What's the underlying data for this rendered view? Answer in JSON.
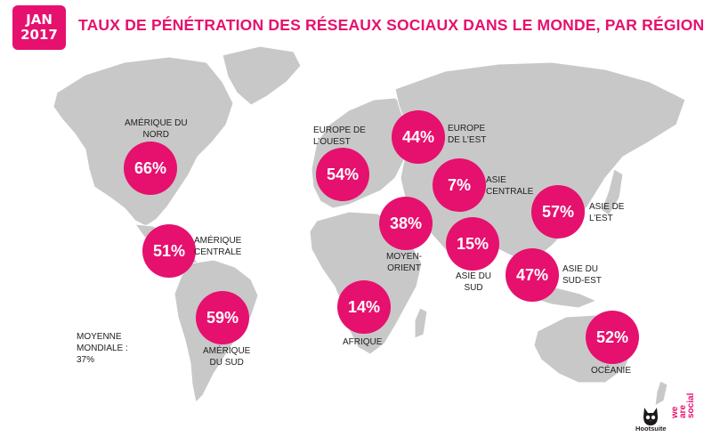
{
  "badge": {
    "month": "JAN",
    "year": "2017"
  },
  "title": "TAUX DE PÉNÉTRATION DES RÉSEAUX SOCIAUX DANS LE MONDE, PAR RÉGION",
  "accent_color": "#e6106e",
  "land_color": "#c8c8c8",
  "regions": [
    {
      "value": "66%",
      "label": [
        "AMÉRIQUE DU",
        "NORD"
      ]
    },
    {
      "value": "51%",
      "label": [
        "AMÉRIQUE",
        "CENTRALE"
      ]
    },
    {
      "value": "59%",
      "label": [
        "AMÉRIQUE",
        "DU SUD"
      ]
    },
    {
      "value": "54%",
      "label": [
        "EUROPE DE",
        "L’OUEST"
      ]
    },
    {
      "value": "44%",
      "label": [
        "EUROPE",
        "DE L’EST"
      ]
    },
    {
      "value": "7%",
      "label": [
        "ASIE",
        "CENTRALE"
      ]
    },
    {
      "value": "57%",
      "label": [
        "ASIE DE",
        "L’EST"
      ]
    },
    {
      "value": "38%",
      "label": [
        "MOYEN-",
        "ORIENT"
      ]
    },
    {
      "value": "15%",
      "label": [
        "ASIE DU",
        "SUD"
      ]
    },
    {
      "value": "47%",
      "label": [
        "ASIE DU",
        "SUD-EST"
      ]
    },
    {
      "value": "14%",
      "label": [
        "AFRIQUE"
      ]
    },
    {
      "value": "52%",
      "label": [
        "OCÉANIE"
      ]
    }
  ],
  "average": {
    "line1": "MOYENNE",
    "line2": "MONDIALE :",
    "line3": "37%"
  },
  "logos": {
    "hootsuite": "Hootsuite",
    "we": "we",
    "are": "are",
    "social": "social"
  }
}
